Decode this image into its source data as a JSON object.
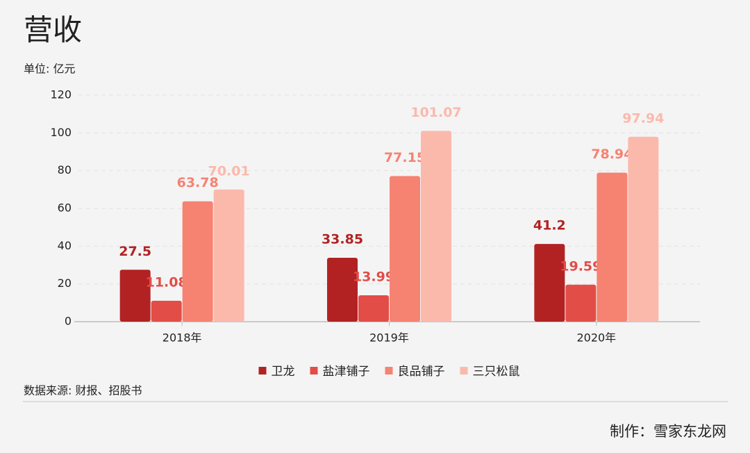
{
  "chart_data": {
    "type": "bar",
    "title": "营收",
    "subtitle": "单位: 亿元",
    "categories": [
      "2018年",
      "2019年",
      "2020年"
    ],
    "series": [
      {
        "name": "卫龙",
        "color": "#b22222",
        "values": [
          27.5,
          33.85,
          41.2
        ]
      },
      {
        "name": "盐津铺子",
        "color": "#e24d47",
        "values": [
          11.08,
          13.99,
          19.59
        ]
      },
      {
        "name": "良品铺子",
        "color": "#f68272",
        "values": [
          63.78,
          77.15,
          78.94
        ]
      },
      {
        "name": "三只松鼠",
        "color": "#fbb9ac",
        "values": [
          70.01,
          101.07,
          97.94
        ]
      }
    ],
    "ylim": [
      0,
      120
    ],
    "yticks": [
      0,
      20,
      40,
      60,
      80,
      100,
      120
    ],
    "grid": true,
    "legend": "bottom",
    "source": "数据来源: 财报、招股书",
    "credit": "制作：雪家东龙网"
  }
}
